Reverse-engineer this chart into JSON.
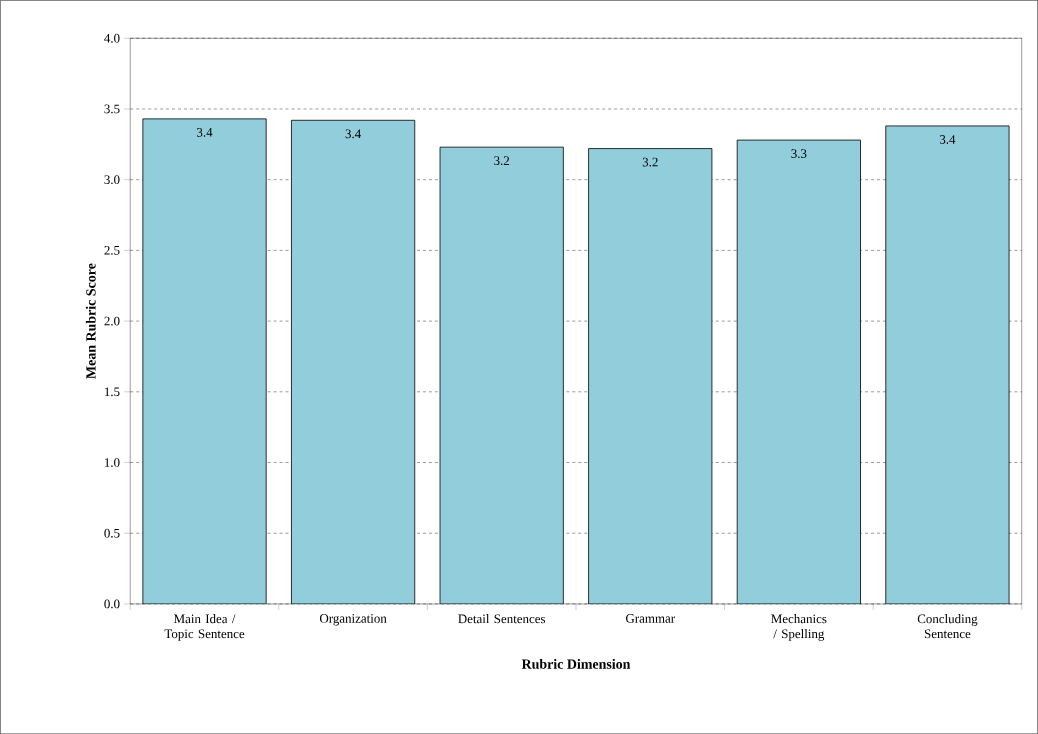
{
  "chart_data": {
    "type": "bar",
    "xlabel": "Rubric Dimension",
    "ylabel": "Mean Rubric Score",
    "categories": [
      "Main Idea / Topic Sentence",
      "Organization",
      "Detail Sentences",
      "Grammar",
      "Mechanics / Spelling",
      "Concluding Sentence"
    ],
    "values": [
      3.43,
      3.42,
      3.23,
      3.22,
      3.28,
      3.38
    ],
    "value_labels": [
      "3.4",
      "3.4",
      "3.2",
      "3.2",
      "3.3",
      "3.4"
    ],
    "color": "#92cddc",
    "ylim": [
      0,
      4
    ],
    "yticks": [
      {
        "value": 0,
        "label": "0.0"
      },
      {
        "value": 0.5,
        "label": "0.5"
      },
      {
        "value": 1,
        "label": "1.0"
      },
      {
        "value": 1.5,
        "label": "1.5"
      },
      {
        "value": 2,
        "label": "2.0"
      },
      {
        "value": 2.5,
        "label": "2.5"
      },
      {
        "value": 3,
        "label": "3.0"
      },
      {
        "value": 3.5,
        "label": "3.5"
      },
      {
        "value": 4,
        "label": "4.0"
      }
    ],
    "grid": "y"
  }
}
